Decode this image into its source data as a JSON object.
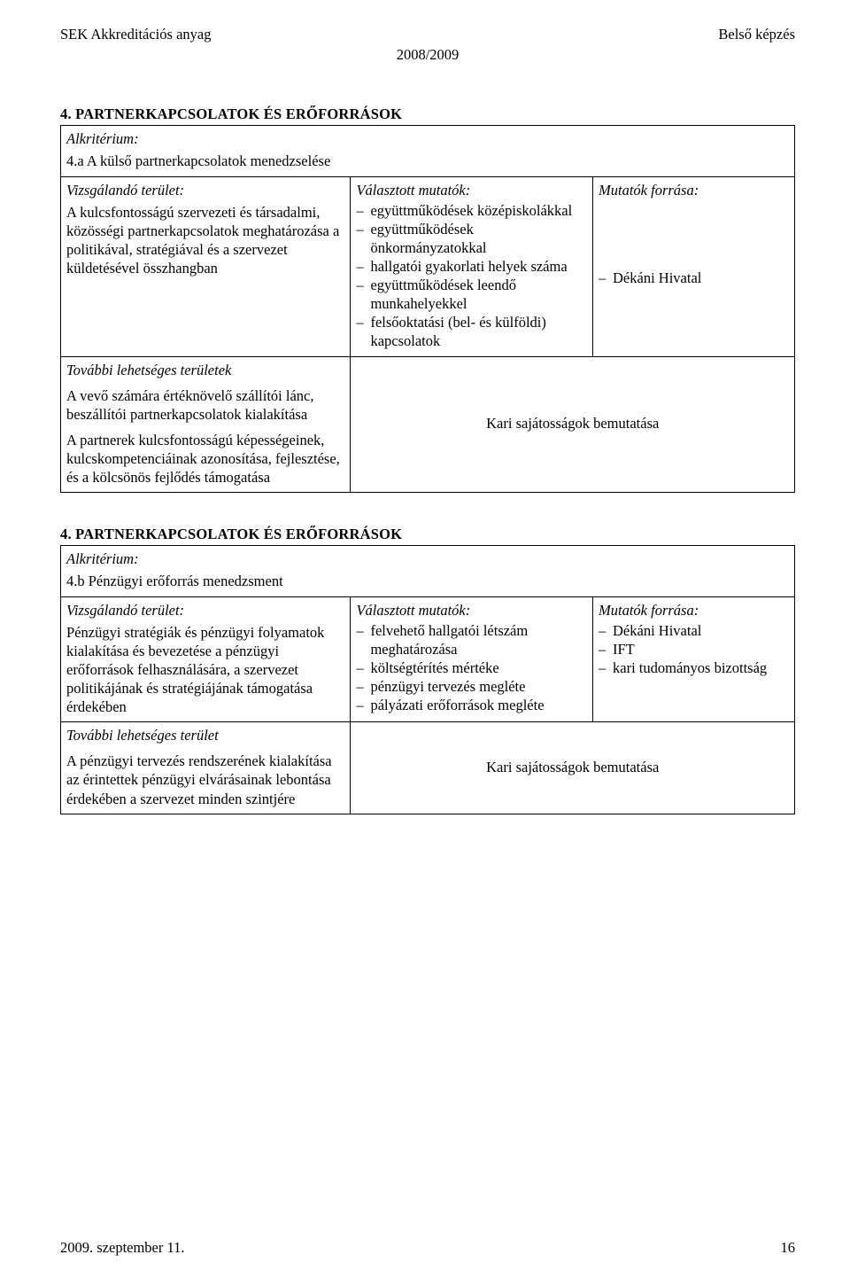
{
  "header": {
    "left": "SEK Akkreditációs anyag",
    "right": "Belső képzés",
    "center": "2008/2009"
  },
  "section4a": {
    "title": "4. PARTNERKAPCSOLATOK ÉS ERŐFORRÁSOK",
    "alkriterium_label": "Alkritérium:",
    "subtitle": "4.a A külső partnerkapcsolatok menedzselése",
    "col1_header": "Vizsgálandó terület:",
    "col1_body": "A kulcsfontosságú szervezeti és társadalmi, közösségi partnerkapcsolatok meghatározása a politikával, stratégiával és a szervezet küldetésével összhangban",
    "col2_header": "Választott mutatók:",
    "indicators": [
      "együttműködések középiskolákkal",
      "együttműködések önkormányzatokkal",
      "hallgatói gyakorlati helyek száma",
      "együttműködések leendő munkahelyekkel",
      "felsőoktatási (bel- és külföldi) kapcsolatok"
    ],
    "col3_header": "Mutatók forrása:",
    "sources": [
      "Dékáni Hivatal"
    ],
    "further_label": "További lehetséges területek",
    "further_body1": "A vevő számára értéknövelő szállítói lánc, beszállítói partnerkapcsolatok kialakítása",
    "further_body2": "A partnerek kulcsfontosságú képességeinek, kulcskompetenciáinak azonosítása, fejlesztése, és a kölcsönös fejlődés támogatása",
    "presentation": "Kari sajátosságok bemutatása"
  },
  "section4b": {
    "title": "4. PARTNERKAPCSOLATOK ÉS ERŐFORRÁSOK",
    "alkriterium_label": "Alkritérium:",
    "subtitle": "4.b Pénzügyi erőforrás menedzsment",
    "col1_header": "Vizsgálandó terület:",
    "col1_body": "Pénzügyi stratégiák és pénzügyi folyamatok kialakítása és bevezetése a pénzügyi erőforrások felhasználására, a szervezet politikájának és stratégiájának támogatása érdekében",
    "col2_header": "Választott mutatók:",
    "indicators": [
      "felvehető hallgatói létszám meghatározása",
      "költségtérítés mértéke",
      "pénzügyi tervezés megléte",
      "pályázati erőforrások megléte"
    ],
    "col3_header": "Mutatók forrása:",
    "sources": [
      "Dékáni Hivatal",
      "IFT",
      "kari tudományos bizottság"
    ],
    "further_label": "További lehetséges terület",
    "further_body1": "A pénzügyi tervezés rendszerének kialakítása az érintettek pénzügyi elvárásainak lebontása érdekében a szervezet minden szintjére",
    "presentation": "Kari sajátosságok bemutatása"
  },
  "footer": {
    "date": "2009. szeptember 11.",
    "page": "16"
  }
}
